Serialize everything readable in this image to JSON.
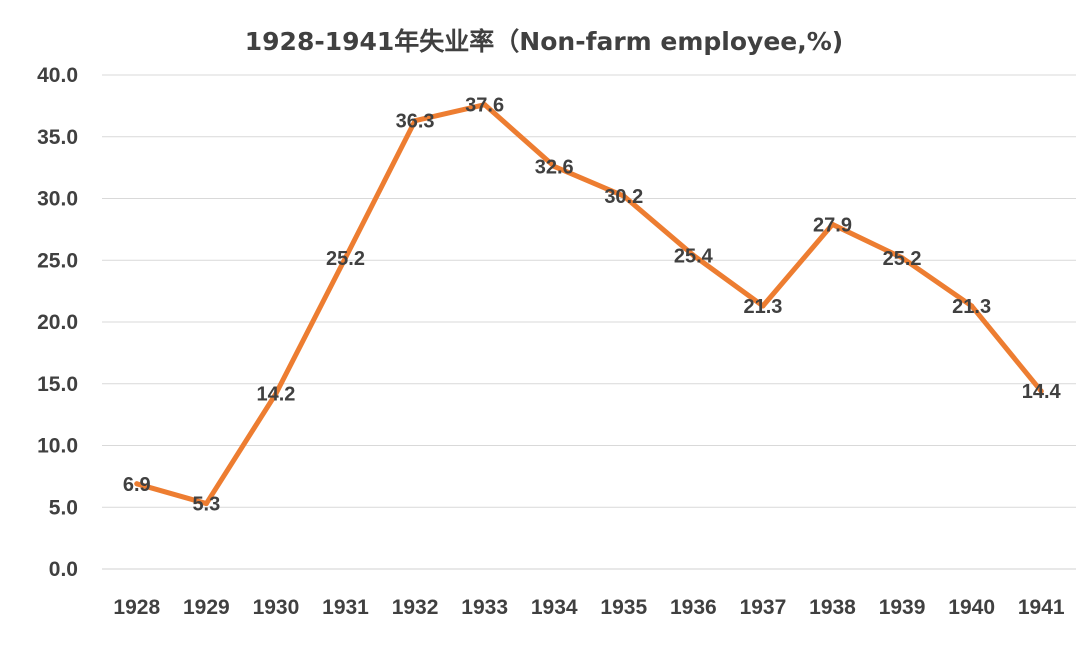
{
  "chart_data": {
    "type": "line",
    "title": "1928-1941年失业率（Non-farm employee,%)",
    "xlabel": "",
    "ylabel": "",
    "categories": [
      "1928",
      "1929",
      "1930",
      "1931",
      "1932",
      "1933",
      "1934",
      "1935",
      "1936",
      "1937",
      "1938",
      "1939",
      "1940",
      "1941"
    ],
    "series": [
      {
        "values": [
          6.9,
          5.3,
          14.2,
          25.2,
          36.3,
          37.6,
          32.6,
          30.2,
          25.4,
          21.3,
          27.9,
          25.2,
          21.3,
          14.4
        ],
        "color": "#ed7d31"
      }
    ],
    "data_labels": [
      "6.9",
      "5.3",
      "14.2",
      "25.2",
      "36.3",
      "37.6",
      "32.6",
      "30.2",
      "25.4",
      "21.3",
      "27.9",
      "25.2",
      "21.3",
      "14.4"
    ],
    "ylim": [
      0,
      40
    ],
    "yticks": [
      "0.0",
      "5.0",
      "10.0",
      "15.0",
      "20.0",
      "25.0",
      "30.0",
      "35.0",
      "40.0"
    ],
    "grid": true,
    "legend": "none"
  }
}
